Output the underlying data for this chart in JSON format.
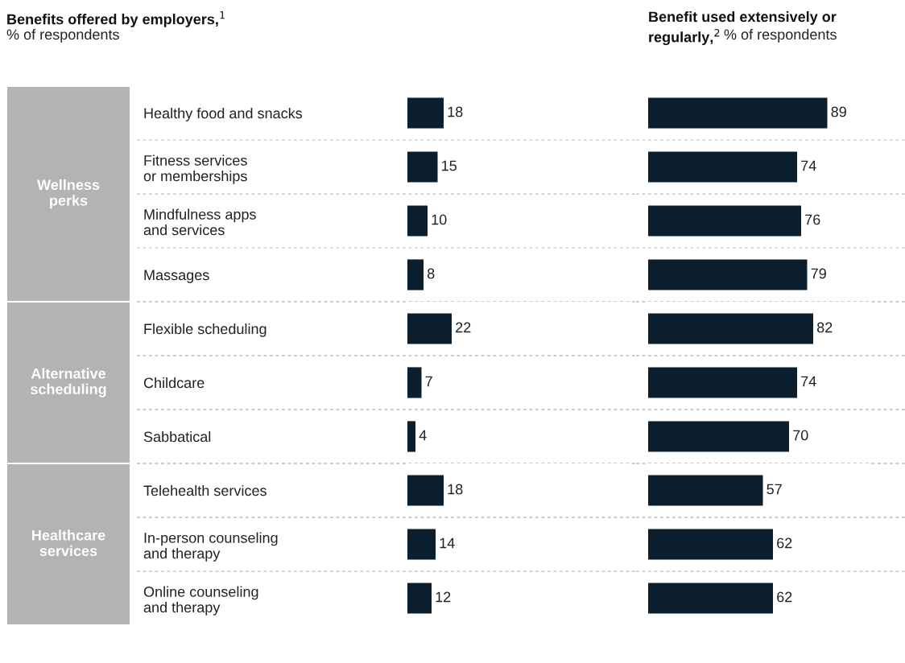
{
  "chart_data": [
    {
      "type": "bar",
      "orientation": "horizontal",
      "title": "Benefits offered by employers,$^{1}$",
      "subtitle": "% of respondents",
      "ylabel": "Wellness\nperks",
      "categories": [
        "Healthy food and snacks",
        "Fitness services\nor memberships",
        "Mindfulness apps\nand services",
        "Massages"
      ],
      "values": [
        18,
        15,
        10,
        8
      ],
      "color": "#0b1f2e",
      "data_labels": true,
      "tick_labels": "y"
    },
    {
      "type": "bar",
      "orientation": "horizontal",
      "title": "Benefit used extensively or\nregularly,$^{2}$",
      "subtitle": "% of respondents",
      "categories": [
        null,
        null,
        null,
        null
      ],
      "values": [
        89,
        74,
        76,
        79
      ],
      "color": "#0b1f2e",
      "data_labels": true,
      "tick_labels": false
    },
    {
      "type": "bar",
      "orientation": "horizontal",
      "ylabel": "Alternative\nscheduling",
      "categories": [
        "Flexible scheduling",
        "Childcare",
        "Sabbatical"
      ],
      "values": [
        22,
        7,
        4
      ],
      "color": "#0b1f2e",
      "data_labels": true,
      "tick_labels": "y"
    },
    {
      "type": "bar",
      "orientation": "horizontal",
      "categories": [
        null,
        null,
        null
      ],
      "values": [
        82,
        74,
        70
      ],
      "color": "#0b1f2e",
      "data_labels": true,
      "tick_labels": false
    },
    {
      "type": "bar",
      "orientation": "horizontal",
      "ylabel": "Healthcare\nservices",
      "categories": [
        "Telehealth services",
        "In-person counseling\nand therapy",
        "Online counseling\nand therapy"
      ],
      "values": [
        18,
        14,
        12
      ],
      "color": "#0b1f2e",
      "data_labels": true,
      "tick_labels": "y"
    },
    {
      "type": "bar",
      "orientation": "horizontal",
      "categories": [
        null,
        null,
        null
      ],
      "values": [
        57,
        62,
        62
      ],
      "color": "#0b1f2e",
      "data_labels": true,
      "tick_labels": false
    }
  ]
}
